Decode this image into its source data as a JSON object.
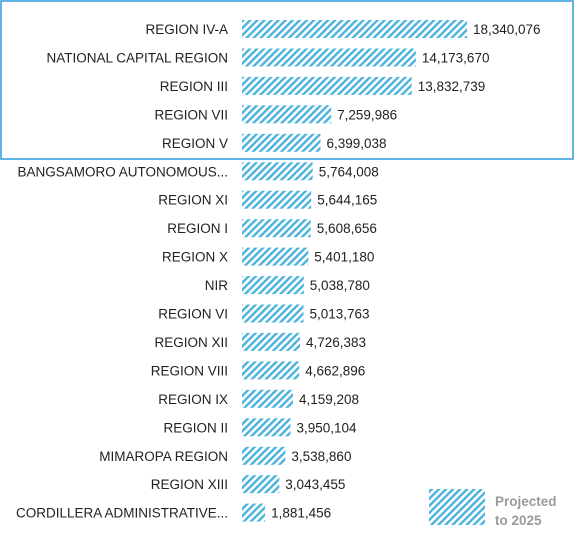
{
  "chart_data": {
    "type": "bar",
    "orientation": "horizontal",
    "categories": [
      "REGION IV-A",
      "NATIONAL CAPITAL REGION",
      "REGION III",
      "REGION VII",
      "REGION V",
      "BANGSAMORO AUTONOMOUS...",
      "REGION XI",
      "REGION I",
      "REGION X",
      "NIR",
      "REGION VI",
      "REGION XII",
      "REGION VIII",
      "REGION IX",
      "REGION II",
      "MIMAROPA REGION",
      "REGION XIII",
      "CORDILLERA ADMINISTRATIVE..."
    ],
    "values": [
      18340076,
      14173670,
      13832739,
      7259986,
      6399038,
      5764008,
      5644165,
      5608656,
      5401180,
      5038780,
      5013763,
      4726383,
      4662896,
      4159208,
      3950104,
      3538860,
      3043455,
      1881456
    ],
    "value_labels": [
      "18,340,076",
      "14,173,670",
      "13,832,739",
      "7,259,986",
      "6,399,038",
      "5,764,008",
      "5,644,165",
      "5,608,656",
      "5,401,180",
      "5,038,780",
      "5,013,763",
      "4,726,383",
      "4,662,896",
      "4,159,208",
      "3,950,104",
      "3,538,860",
      "3,043,455",
      "1,881,456"
    ],
    "highlighted_top_n": 5,
    "legend": {
      "label_line1": "Projected",
      "label_line2": "to 2025",
      "placement": "bottom-right"
    },
    "grid": false,
    "colors": {
      "bar": "#4ab3dd",
      "bar_background": "#ffffff",
      "highlight_border": "#3aa0dc",
      "legend_text": "#9a9a9a"
    }
  }
}
